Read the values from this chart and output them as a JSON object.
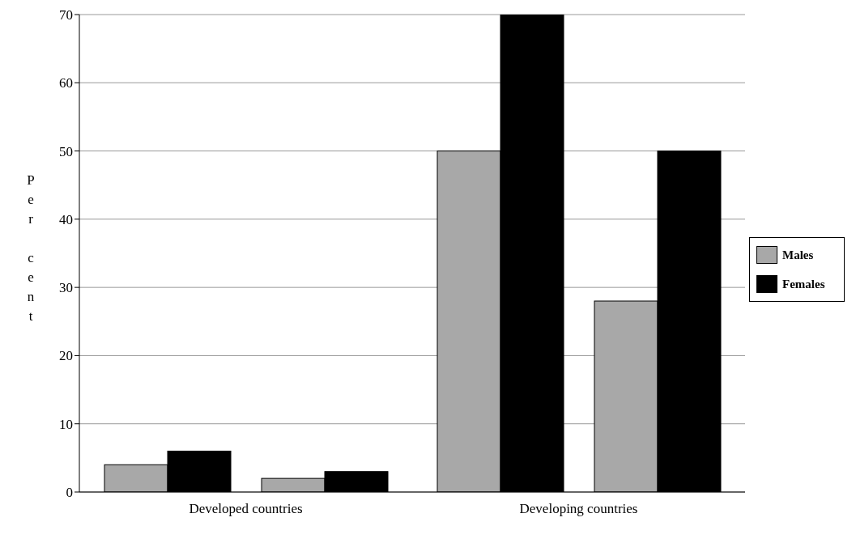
{
  "chart_data": {
    "type": "bar",
    "ylabel": "Per cent",
    "categories": [
      "Developed countries",
      "Developing countries"
    ],
    "series": [
      {
        "name": "Males",
        "color": "#a8a8a8",
        "values": [
          4,
          50
        ]
      },
      {
        "name": "Females",
        "color": "#000000",
        "values": [
          6,
          70
        ]
      },
      {
        "color": "#a8a8a8",
        "values": [
          2,
          28
        ]
      },
      {
        "color": "#000000",
        "values": [
          3,
          50
        ]
      }
    ],
    "ylim": [
      0,
      70
    ],
    "yticks": [
      0,
      10,
      20,
      30,
      40,
      50,
      60,
      70
    ],
    "grid": "y",
    "legend": "right"
  }
}
